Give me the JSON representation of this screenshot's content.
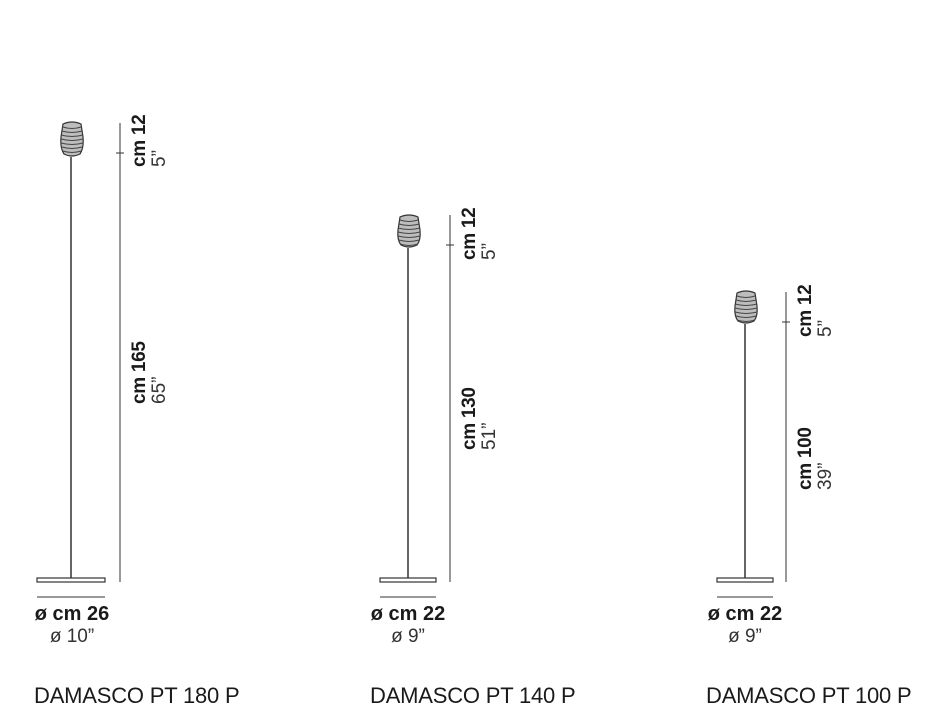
{
  "lamps": [
    {
      "name": "DAMASCO PT 180 P",
      "shade_height_cm": "cm 12",
      "shade_height_in": "5”",
      "stem_height_cm": "cm 165",
      "stem_height_in": "65”",
      "base_diameter_cm": "ø cm 26",
      "base_diameter_in": "ø 10”"
    },
    {
      "name": "DAMASCO PT 140 P",
      "shade_height_cm": "cm 12",
      "shade_height_in": "5”",
      "stem_height_cm": "cm 130",
      "stem_height_in": "51”",
      "base_diameter_cm": "ø cm 22",
      "base_diameter_in": "ø 9”"
    },
    {
      "name": "DAMASCO PT 100 P",
      "shade_height_cm": "cm 12",
      "shade_height_in": "5”",
      "stem_height_cm": "cm 100",
      "stem_height_in": "39”",
      "base_diameter_cm": "ø cm 22",
      "base_diameter_in": "ø 9”"
    }
  ]
}
